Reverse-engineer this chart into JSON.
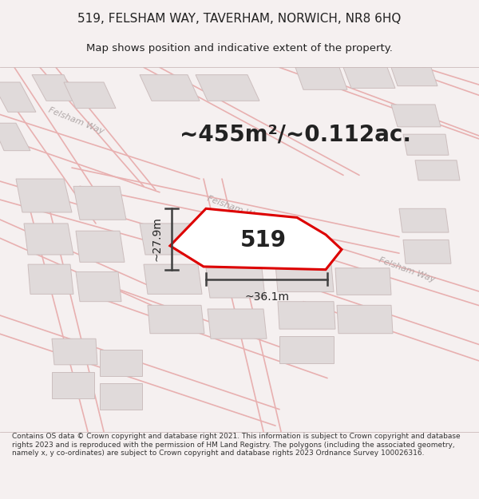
{
  "title_line1": "519, FELSHAM WAY, TAVERHAM, NORWICH, NR8 6HQ",
  "title_line2": "Map shows position and indicative extent of the property.",
  "footer_text": "Contains OS data © Crown copyright and database right 2021. This information is subject to Crown copyright and database rights 2023 and is reproduced with the permission of HM Land Registry. The polygons (including the associated geometry, namely x, y co-ordinates) are subject to Crown copyright and database rights 2023 Ordnance Survey 100026316.",
  "area_label": "~455m²/~0.112ac.",
  "plot_number": "519",
  "dim_width": "~36.1m",
  "dim_height": "~27.9m",
  "map_bg": "#f7f5f5",
  "road_outline_color": "#e8b0b0",
  "building_face_color": "#e0dada",
  "building_edge_color": "#ccbebe",
  "plot_outline_color": "#dd0000",
  "dim_line_color": "#404040",
  "road_label_color": "#b0a8a8",
  "title_color": "#222222",
  "footer_color": "#333333",
  "bg_color": "#f5f0f0",
  "title_fs": 11,
  "subtitle_fs": 9.5,
  "area_fs": 20,
  "plot_num_fs": 20,
  "dim_fs": 10,
  "road_label_fs": 8
}
